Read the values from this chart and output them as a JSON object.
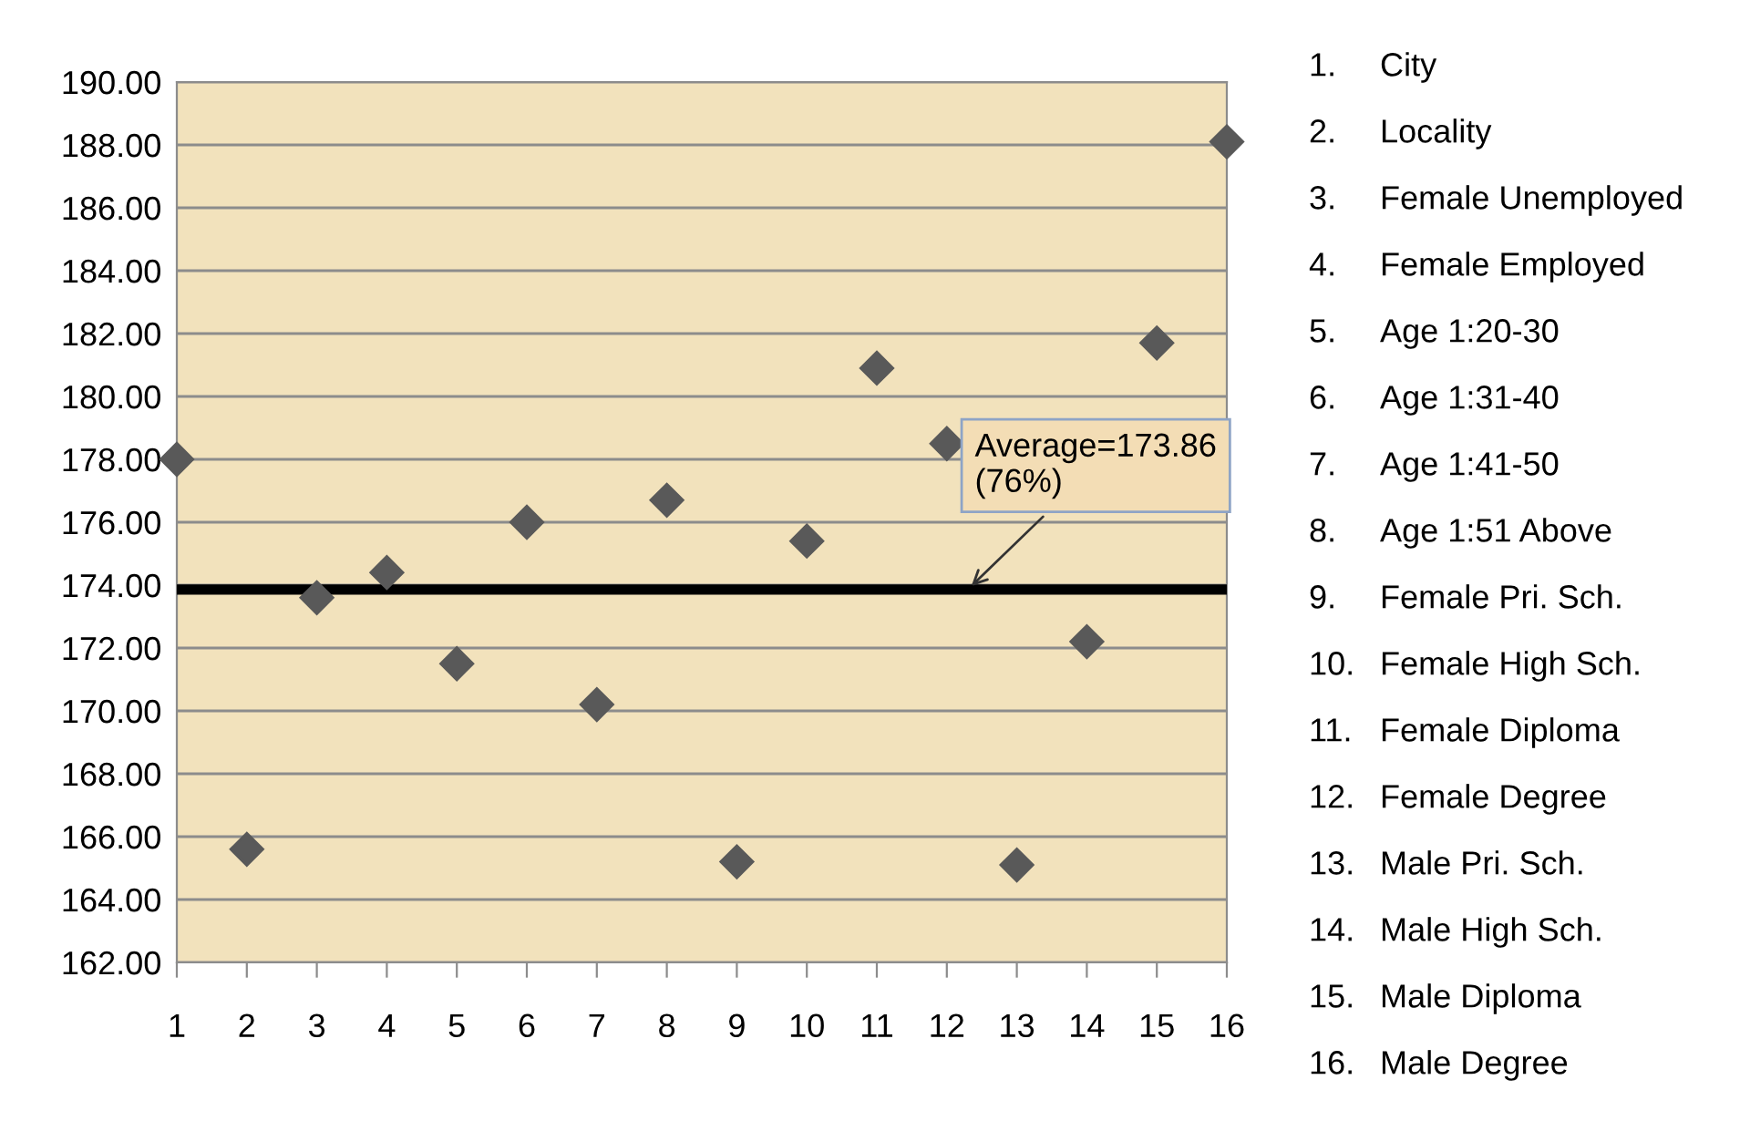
{
  "chart_data": {
    "type": "scatter",
    "x": [
      1,
      2,
      3,
      4,
      5,
      6,
      7,
      8,
      9,
      10,
      11,
      12,
      13,
      14,
      15,
      16
    ],
    "series": [
      {
        "color": "#595959",
        "values": [
          178.0,
          165.6,
          173.6,
          174.4,
          171.5,
          176.0,
          170.2,
          176.7,
          165.2,
          175.4,
          180.9,
          178.5,
          165.1,
          172.2,
          181.7,
          188.1
        ]
      }
    ],
    "xlim": [
      1,
      16
    ],
    "xticks": [
      1,
      2,
      3,
      4,
      5,
      6,
      7,
      8,
      9,
      10,
      11,
      12,
      13,
      14,
      15,
      16
    ],
    "ylim": [
      162,
      190
    ],
    "yticks": [
      {
        "value": 162,
        "label": "162.00"
      },
      {
        "value": 164,
        "label": "164.00"
      },
      {
        "value": 166,
        "label": "166.00"
      },
      {
        "value": 168,
        "label": "168.00"
      },
      {
        "value": 170,
        "label": "170.00"
      },
      {
        "value": 172,
        "label": "172.00"
      },
      {
        "value": 174,
        "label": "174.00"
      },
      {
        "value": 176,
        "label": "176.00"
      },
      {
        "value": 178,
        "label": "178.00"
      },
      {
        "value": 180,
        "label": "180.00"
      },
      {
        "value": 182,
        "label": "182.00"
      },
      {
        "value": 184,
        "label": "184.00"
      },
      {
        "value": 186,
        "label": "186.00"
      },
      {
        "value": 188,
        "label": "188.00"
      },
      {
        "value": 190,
        "label": "190.00"
      }
    ],
    "grid": "y",
    "marker": "diamond",
    "legend": false,
    "ref_lines": [
      {
        "axis": "y",
        "value": 173.86,
        "label": "Average=173.86\n(76%)",
        "color": "#000000"
      }
    ],
    "annotations": [
      "1.\tCity",
      "2.\tLocality",
      "3.\tFemale Unemployed",
      "4.\tFemale Employed",
      "5.\tAge 1:20-30",
      "6.\tAge 1:31-40",
      "7.\tAge 1:41-50",
      "8.\tAge 1:51 Above",
      "9.\tFemale Pri. Sch.",
      "10.\tFemale High Sch.",
      "11.\tFemale Diploma",
      "12.\tFemale Degree",
      "13.\tMale Pri. Sch.",
      "14.\tMale High Sch.",
      "15.\tMale Diploma",
      "16.\tMale Degree"
    ]
  }
}
